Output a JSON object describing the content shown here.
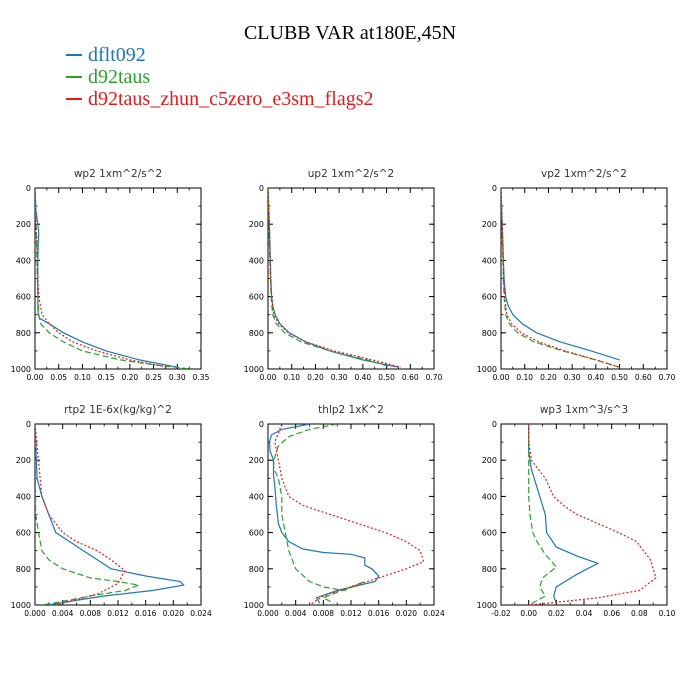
{
  "figure": {
    "title": "CLUBB VAR at180E,45N",
    "legend": [
      {
        "label": "dflt092",
        "color": "#1f77b4"
      },
      {
        "label": "d92taus",
        "color": "#2ca02c"
      },
      {
        "label": "d92taus_zhun_c5zero_e3sm_flags2",
        "color": "#e41a1c"
      }
    ]
  },
  "chart_data": [
    {
      "type": "line",
      "title": "wp2   1xm^2/s^2",
      "xlim": [
        0,
        0.35
      ],
      "xticks": [
        0,
        0.05,
        0.1,
        0.15,
        0.2,
        0.25,
        0.3,
        0.35
      ],
      "xticklabels": [
        "0.00",
        "0.05",
        "0.10",
        "0.15",
        "0.20",
        "0.25",
        "0.30",
        "0.35"
      ],
      "ylim": [
        0,
        1000
      ],
      "yticks": [
        0,
        200,
        400,
        600,
        800,
        1000
      ],
      "yticklabels": [
        "0",
        "200",
        "400",
        "600",
        "800",
        "1000"
      ],
      "series": [
        {
          "name": "dflt092",
          "color": "#1f77b4",
          "dash": "",
          "x": [
            0.0,
            0.002,
            0.006,
            0.008,
            0.007,
            0.006,
            0.006,
            0.006,
            0.006,
            0.007,
            0.01,
            0.03,
            0.06,
            0.1,
            0.15,
            0.22,
            0.3
          ],
          "y": [
            0,
            120,
            200,
            250,
            300,
            400,
            500,
            600,
            650,
            700,
            720,
            750,
            800,
            850,
            900,
            950,
            990
          ]
        },
        {
          "name": "d92taus",
          "color": "#2ca02c",
          "dash": "6,3",
          "x": [
            0.0,
            0.001,
            0.003,
            0.004,
            0.005,
            0.006,
            0.008,
            0.012,
            0.03,
            0.06,
            0.1,
            0.18,
            0.26,
            0.33
          ],
          "y": [
            0,
            150,
            250,
            400,
            500,
            600,
            700,
            750,
            800,
            850,
            900,
            950,
            980,
            1000
          ]
        },
        {
          "name": "d92taus_zhun_c5zero_e3sm_flags2",
          "color": "#e41a1c",
          "dash": "2,2",
          "x": [
            0.0,
            0.002,
            0.004,
            0.005,
            0.006,
            0.008,
            0.015,
            0.03,
            0.05,
            0.08,
            0.13,
            0.2,
            0.28
          ],
          "y": [
            0,
            200,
            300,
            400,
            500,
            600,
            700,
            750,
            800,
            850,
            900,
            950,
            990
          ]
        }
      ]
    },
    {
      "type": "line",
      "title": "up2   1xm^2/s^2",
      "xlim": [
        0,
        0.7
      ],
      "xticks": [
        0,
        0.1,
        0.2,
        0.3,
        0.4,
        0.5,
        0.6,
        0.7
      ],
      "xticklabels": [
        "0.00",
        "0.10",
        "0.20",
        "0.30",
        "0.40",
        "0.50",
        "0.60",
        "0.70"
      ],
      "ylim": [
        0,
        1000
      ],
      "yticks": [
        0,
        200,
        400,
        600,
        800,
        1000
      ],
      "yticklabels": [
        "0",
        "200",
        "400",
        "600",
        "800",
        "1000"
      ],
      "series": [
        {
          "name": "dflt092",
          "color": "#1f77b4",
          "dash": "",
          "x": [
            0.0,
            0.006,
            0.008,
            0.01,
            0.012,
            0.015,
            0.02,
            0.03,
            0.05,
            0.09,
            0.16,
            0.26,
            0.4,
            0.55
          ],
          "y": [
            0,
            200,
            300,
            400,
            500,
            600,
            650,
            700,
            750,
            800,
            850,
            900,
            950,
            990
          ]
        },
        {
          "name": "d92taus",
          "color": "#2ca02c",
          "dash": "6,3",
          "x": [
            0.0,
            0.004,
            0.006,
            0.008,
            0.01,
            0.013,
            0.02,
            0.035,
            0.07,
            0.14,
            0.26,
            0.42,
            0.52
          ],
          "y": [
            0,
            200,
            300,
            400,
            500,
            600,
            700,
            750,
            800,
            850,
            900,
            950,
            990
          ]
        },
        {
          "name": "d92taus_zhun_c5zero_e3sm_flags2",
          "color": "#e41a1c",
          "dash": "2,2",
          "x": [
            0.0,
            0.005,
            0.007,
            0.009,
            0.011,
            0.015,
            0.025,
            0.045,
            0.085,
            0.16,
            0.28,
            0.44,
            0.56
          ],
          "y": [
            0,
            200,
            300,
            400,
            500,
            600,
            700,
            750,
            800,
            850,
            900,
            950,
            990
          ]
        }
      ]
    },
    {
      "type": "line",
      "title": "vp2   1xm^2/s^2",
      "xlim": [
        0,
        0.7
      ],
      "xticks": [
        0,
        0.1,
        0.2,
        0.3,
        0.4,
        0.5,
        0.6,
        0.7
      ],
      "xticklabels": [
        "0.00",
        "0.10",
        "0.20",
        "0.30",
        "0.40",
        "0.50",
        "0.60",
        "0.70"
      ],
      "ylim": [
        0,
        1000
      ],
      "yticks": [
        0,
        200,
        400,
        600,
        800,
        1000
      ],
      "yticklabels": [
        "0",
        "200",
        "400",
        "600",
        "800",
        "1000"
      ],
      "series": [
        {
          "name": "dflt092",
          "color": "#1f77b4",
          "dash": "",
          "x": [
            0.0,
            0.005,
            0.008,
            0.01,
            0.013,
            0.02,
            0.03,
            0.05,
            0.09,
            0.15,
            0.25,
            0.38,
            0.5
          ],
          "y": [
            0,
            200,
            300,
            400,
            500,
            600,
            650,
            700,
            750,
            800,
            850,
            900,
            950
          ]
        },
        {
          "name": "d92taus",
          "color": "#2ca02c",
          "dash": "6,3",
          "x": [
            0.0,
            0.004,
            0.006,
            0.008,
            0.01,
            0.013,
            0.02,
            0.035,
            0.07,
            0.14,
            0.26,
            0.4,
            0.5
          ],
          "y": [
            0,
            200,
            300,
            400,
            500,
            600,
            700,
            750,
            800,
            850,
            900,
            950,
            990
          ]
        },
        {
          "name": "d92taus_zhun_c5zero_e3sm_flags2",
          "color": "#e41a1c",
          "dash": "2,2",
          "x": [
            0.0,
            0.005,
            0.007,
            0.009,
            0.011,
            0.015,
            0.025,
            0.045,
            0.085,
            0.16,
            0.27,
            0.4,
            0.5
          ],
          "y": [
            0,
            200,
            300,
            400,
            500,
            600,
            700,
            750,
            800,
            850,
            900,
            950,
            990
          ]
        }
      ]
    },
    {
      "type": "line",
      "title": "rtp2   1E-6x(kg/kg)^2",
      "xlim": [
        0,
        0.024
      ],
      "xticks": [
        0,
        0.004,
        0.008,
        0.012,
        0.016,
        0.02,
        0.024
      ],
      "xticklabels": [
        "0.000",
        "0.004",
        "0.008",
        "0.012",
        "0.016",
        "0.020",
        "0.024"
      ],
      "ylim": [
        0,
        1000
      ],
      "yticks": [
        0,
        200,
        400,
        600,
        800,
        1000
      ],
      "yticklabels": [
        "0",
        "200",
        "400",
        "600",
        "800",
        "1000"
      ],
      "series": [
        {
          "name": "dflt092",
          "color": "#1f77b4",
          "dash": "",
          "x": [
            0.0,
            0.0003,
            0.001,
            0.002,
            0.003,
            0.005,
            0.007,
            0.009,
            0.011,
            0.016,
            0.021,
            0.0215,
            0.017,
            0.01,
            0.005,
            0.002
          ],
          "y": [
            0,
            300,
            400,
            500,
            600,
            650,
            700,
            750,
            800,
            840,
            870,
            890,
            920,
            950,
            980,
            1000
          ]
        },
        {
          "name": "d92taus",
          "color": "#2ca02c",
          "dash": "6,3",
          "x": [
            0.0,
            0.0001,
            0.0005,
            0.001,
            0.002,
            0.004,
            0.008,
            0.012,
            0.015,
            0.013,
            0.008,
            0.004,
            0.001
          ],
          "y": [
            0,
            500,
            600,
            700,
            750,
            800,
            850,
            870,
            890,
            920,
            950,
            980,
            1000
          ]
        },
        {
          "name": "d92taus_zhun_c5zero_e3sm_flags2",
          "color": "#e41a1c",
          "dash": "2,2",
          "x": [
            0.0,
            0.001,
            0.002,
            0.004,
            0.006,
            0.009,
            0.011,
            0.013,
            0.012,
            0.009,
            0.006,
            0.003
          ],
          "y": [
            0,
            400,
            500,
            600,
            650,
            700,
            750,
            810,
            880,
            940,
            970,
            1000
          ]
        }
      ]
    },
    {
      "type": "line",
      "title": "thlp2   1xK^2",
      "xlim": [
        0,
        0.024
      ],
      "xticks": [
        0,
        0.004,
        0.008,
        0.012,
        0.016,
        0.02,
        0.024
      ],
      "xticklabels": [
        "0.000",
        "0.004",
        "0.008",
        "0.012",
        "0.016",
        "0.020",
        "0.024"
      ],
      "ylim": [
        0,
        1000
      ],
      "yticks": [
        0,
        200,
        400,
        600,
        800,
        1000
      ],
      "yticklabels": [
        "0",
        "200",
        "400",
        "600",
        "800",
        "1000"
      ],
      "series": [
        {
          "name": "dflt092",
          "color": "#1f77b4",
          "dash": "",
          "x": [
            0.006,
            0.002,
            0.0005,
            0.0002,
            0.0003,
            0.0008,
            0.0008,
            0.001,
            0.0012,
            0.0015,
            0.002,
            0.003,
            0.005,
            0.008,
            0.012,
            0.014,
            0.014,
            0.015,
            0.016,
            0.0155,
            0.01,
            0.007,
            0.0075
          ],
          "y": [
            0,
            30,
            60,
            100,
            150,
            200,
            280,
            350,
            450,
            550,
            600,
            650,
            690,
            710,
            720,
            740,
            780,
            800,
            840,
            870,
            920,
            960,
            990
          ]
        },
        {
          "name": "d92taus",
          "color": "#2ca02c",
          "dash": "6,3",
          "x": [
            0.01,
            0.006,
            0.003,
            0.0015,
            0.001,
            0.0008,
            0.001,
            0.0015,
            0.002,
            0.002,
            0.0025,
            0.003,
            0.004,
            0.006,
            0.008,
            0.011,
            0.014,
            0.01,
            0.008,
            0.0095
          ],
          "y": [
            0,
            30,
            70,
            120,
            180,
            230,
            260,
            300,
            400,
            500,
            600,
            700,
            800,
            870,
            900,
            920,
            870,
            930,
            960,
            990
          ]
        },
        {
          "name": "d92taus_zhun_c5zero_e3sm_flags2",
          "color": "#e41a1c",
          "dash": "2,2",
          "x": [
            0.002,
            0.001,
            0.0015,
            0.002,
            0.003,
            0.005,
            0.009,
            0.013,
            0.017,
            0.02,
            0.022,
            0.0225,
            0.02,
            0.016,
            0.012,
            0.008,
            0.006
          ],
          "y": [
            0,
            100,
            200,
            300,
            400,
            450,
            500,
            550,
            600,
            650,
            700,
            760,
            800,
            850,
            900,
            950,
            1000
          ]
        }
      ]
    },
    {
      "type": "line",
      "title": "wp3   1xm^3/s^3",
      "xlim": [
        -0.02,
        0.1
      ],
      "xticks": [
        -0.02,
        0,
        0.02,
        0.04,
        0.06,
        0.08,
        0.1
      ],
      "xticklabels": [
        "-0.02",
        "0.00",
        "0.02",
        "0.04",
        "0.06",
        "0.08",
        "0.10"
      ],
      "ylim": [
        0,
        1000
      ],
      "yticks": [
        0,
        200,
        400,
        600,
        800,
        1000
      ],
      "yticklabels": [
        "0",
        "200",
        "400",
        "600",
        "800",
        "1000"
      ],
      "series": [
        {
          "name": "dflt092",
          "color": "#1f77b4",
          "dash": "",
          "x": [
            0.0,
            0.0,
            0.002,
            0.006,
            0.01,
            0.012,
            0.013,
            0.02,
            0.035,
            0.05,
            0.035,
            0.02,
            0.018,
            0.02
          ],
          "y": [
            0,
            150,
            250,
            350,
            450,
            500,
            600,
            680,
            730,
            770,
            830,
            900,
            950,
            990
          ]
        },
        {
          "name": "d92taus",
          "color": "#2ca02c",
          "dash": "6,3",
          "x": [
            0.0,
            0.0,
            0.0,
            0.001,
            0.003,
            0.006,
            0.012,
            0.02,
            0.01,
            0.008,
            0.012,
            0.005,
            0.0
          ],
          "y": [
            0,
            300,
            400,
            500,
            600,
            650,
            720,
            790,
            850,
            900,
            950,
            980,
            1000
          ]
        },
        {
          "name": "d92taus_zhun_c5zero_e3sm_flags2",
          "color": "#e41a1c",
          "dash": "2,2",
          "x": [
            0.0,
            0.0,
            0.002,
            0.007,
            0.012,
            0.018,
            0.025,
            0.035,
            0.05,
            0.065,
            0.078,
            0.088,
            0.092,
            0.08,
            0.05,
            0.02,
            0.0
          ],
          "y": [
            0,
            100,
            200,
            250,
            300,
            400,
            450,
            500,
            550,
            600,
            650,
            750,
            850,
            920,
            960,
            985,
            1000
          ]
        }
      ]
    }
  ]
}
